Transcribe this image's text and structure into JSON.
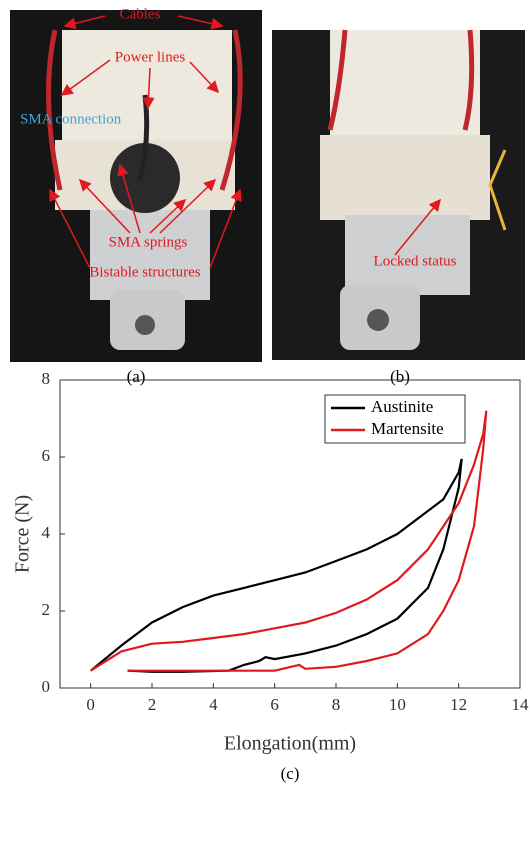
{
  "panel_a": {
    "labels": [
      "Cables",
      "Power lines",
      "SMA connection",
      "SMA springs",
      "Bistable structures"
    ],
    "caption": "(a)"
  },
  "panel_b": {
    "labels": [
      "Locked status"
    ],
    "caption": "(b)"
  },
  "chart_data": {
    "type": "line",
    "caption": "(c)",
    "x_label": "Elongation(mm)",
    "y_label": "Force (N)",
    "xlim": [
      -1,
      14
    ],
    "xticks": [
      0,
      2,
      4,
      6,
      8,
      10,
      12,
      14
    ],
    "ylim": [
      0,
      8
    ],
    "yticks": [
      0,
      2,
      4,
      6,
      8
    ],
    "legend": "top-right",
    "series": [
      {
        "name": "Austinite",
        "color": "#000000",
        "x": [
          0,
          1,
          2,
          3,
          4,
          5,
          6,
          7,
          8,
          9,
          10,
          11,
          11.5,
          12,
          12.1,
          12,
          11.5,
          11,
          10,
          9,
          8,
          7,
          6,
          5.7,
          5.5,
          5,
          4.5,
          3,
          2,
          1.2
        ],
        "values": [
          0.45,
          1.1,
          1.7,
          2.1,
          2.4,
          2.6,
          2.8,
          3.0,
          3.3,
          3.6,
          4.0,
          4.6,
          4.9,
          5.6,
          5.95,
          5.2,
          3.6,
          2.6,
          1.8,
          1.4,
          1.1,
          0.9,
          0.75,
          0.8,
          0.7,
          0.6,
          0.45,
          0.42,
          0.42,
          0.45
        ]
      },
      {
        "name": "Martensite",
        "color": "#e0191e",
        "x": [
          0,
          1,
          2,
          3,
          4,
          5,
          6,
          7,
          8,
          9,
          10,
          11,
          12,
          12.5,
          12.8,
          12.9,
          12.8,
          12.5,
          12,
          11.5,
          11,
          10,
          9,
          8,
          7,
          6.8,
          6,
          4,
          2,
          1.2
        ],
        "values": [
          0.45,
          0.95,
          1.15,
          1.2,
          1.3,
          1.4,
          1.55,
          1.7,
          1.95,
          2.3,
          2.8,
          3.6,
          4.8,
          5.8,
          6.6,
          7.2,
          6.2,
          4.2,
          2.8,
          2.0,
          1.4,
          0.9,
          0.7,
          0.55,
          0.5,
          0.6,
          0.45,
          0.45,
          0.45,
          0.45
        ]
      }
    ]
  }
}
